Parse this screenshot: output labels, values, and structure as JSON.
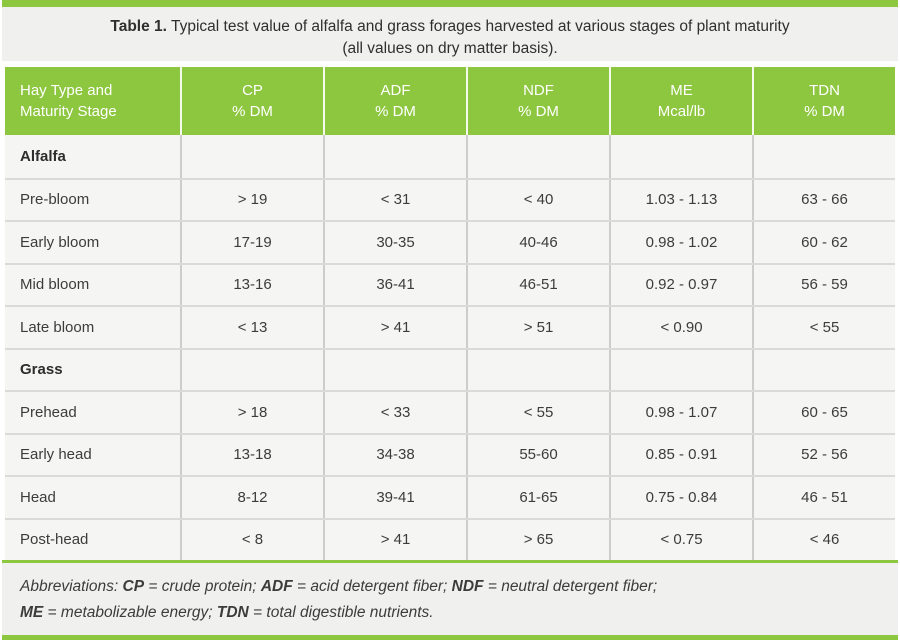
{
  "colors": {
    "accent": "#8dc63f",
    "panel": "#f0f0ef",
    "cell": "#f5f5f4"
  },
  "caption": {
    "bold": "Table 1.",
    "text": " Typical test value of alfalfa and grass forages harvested at various stages of plant maturity",
    "line2": "(all values on dry matter basis)."
  },
  "header": {
    "columns": [
      {
        "line1": "Hay Type and",
        "line2": "Maturity Stage"
      },
      {
        "line1": "CP",
        "line2": "% DM"
      },
      {
        "line1": "ADF",
        "line2": "% DM"
      },
      {
        "line1": "NDF",
        "line2": "% DM"
      },
      {
        "line1": "ME",
        "line2": "Mcal/lb"
      },
      {
        "line1": "TDN",
        "line2": "% DM"
      }
    ]
  },
  "rows": [
    {
      "type": "section",
      "stage": "Alfalfa",
      "values": [
        "",
        "",
        "",
        "",
        ""
      ]
    },
    {
      "type": "data",
      "stage": "Pre-bloom",
      "values": [
        "> 19",
        "< 31",
        "< 40",
        "1.03 - 1.13",
        "63 - 66"
      ]
    },
    {
      "type": "data",
      "stage": "Early bloom",
      "values": [
        "17-19",
        "30-35",
        "40-46",
        "0.98 - 1.02",
        "60 - 62"
      ]
    },
    {
      "type": "data",
      "stage": "Mid bloom",
      "values": [
        "13-16",
        "36-41",
        "46-51",
        "0.92 - 0.97",
        "56 - 59"
      ]
    },
    {
      "type": "data",
      "stage": "Late bloom",
      "values": [
        "< 13",
        "> 41",
        "> 51",
        "< 0.90",
        "< 55"
      ]
    },
    {
      "type": "section",
      "stage": "Grass",
      "values": [
        "",
        "",
        "",
        "",
        ""
      ]
    },
    {
      "type": "data",
      "stage": "Prehead",
      "values": [
        "> 18",
        "< 33",
        "< 55",
        "0.98 - 1.07",
        "60 - 65"
      ]
    },
    {
      "type": "data",
      "stage": "Early head",
      "values": [
        "13-18",
        "34-38",
        "55-60",
        "0.85 - 0.91",
        "52 - 56"
      ]
    },
    {
      "type": "data",
      "stage": "Head",
      "values": [
        "8-12",
        "39-41",
        "61-65",
        "0.75 - 0.84",
        "46 - 51"
      ]
    },
    {
      "type": "data",
      "stage": "Post-head",
      "values": [
        "< 8",
        "> 41",
        "> 65",
        "< 0.75",
        "< 46"
      ]
    }
  ],
  "footnote": {
    "line1": [
      {
        "text": "Abbreviations: "
      },
      {
        "text": "CP"
      },
      {
        "text": " = crude protein; "
      },
      {
        "text": "ADF"
      },
      {
        "text": " = acid detergent fiber; "
      },
      {
        "text": "NDF"
      },
      {
        "text": " = neutral detergent fiber;"
      }
    ],
    "line2": [
      {
        "text": "ME"
      },
      {
        "text": " = metabolizable energy; "
      },
      {
        "text": "TDN"
      },
      {
        "text": " = total digestible nutrients."
      }
    ]
  }
}
